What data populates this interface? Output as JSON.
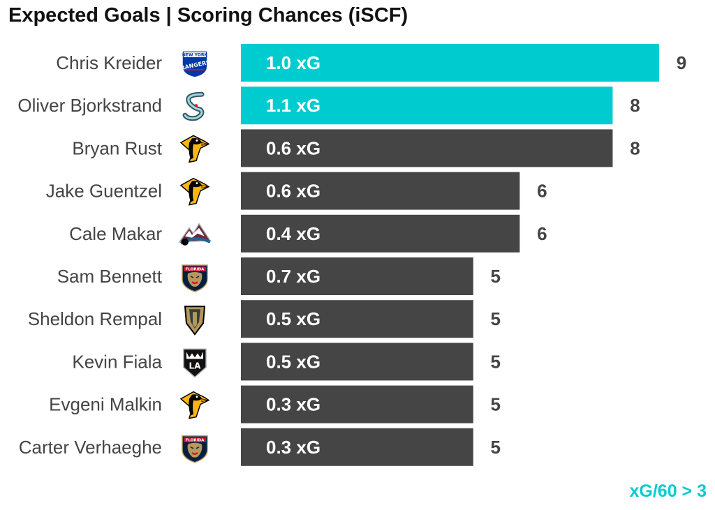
{
  "colors": {
    "highlight": "#00ccd0",
    "default_bar": "#454545",
    "label_text": "#444444",
    "title_text": "#111111"
  },
  "chart_data": {
    "type": "bar",
    "orientation": "horizontal",
    "title": "Expected Goals | Scoring Chances (iSCF)",
    "note": "xG/60 > 3",
    "xlim": [
      0,
      9
    ],
    "grid": false,
    "categories": [
      "Chris Kreider",
      "Oliver Bjorkstrand",
      "Bryan Rust",
      "Jake Guentzel",
      "Cale Makar",
      "Sam Bennett",
      "Sheldon Rempal",
      "Kevin Fiala",
      "Evgeni Malkin",
      "Carter Verhaeghe"
    ],
    "values": [
      9,
      8,
      8,
      6,
      6,
      5,
      5,
      5,
      5,
      5
    ],
    "xg_labels": [
      "1.0 xG",
      "1.1 xG",
      "0.6 xG",
      "0.6 xG",
      "0.4 xG",
      "0.7 xG",
      "0.5 xG",
      "0.5 xG",
      "0.3 xG",
      "0.3 xG"
    ],
    "highlighted": [
      true,
      true,
      false,
      false,
      false,
      false,
      false,
      false,
      false,
      false
    ],
    "team_logos": [
      "rangers-logo-icon",
      "kraken-logo-icon",
      "penguins-logo-icon",
      "penguins-logo-icon",
      "avalanche-logo-icon",
      "panthers-logo-icon",
      "golden-knights-logo-icon",
      "kings-logo-icon",
      "penguins-logo-icon",
      "panthers-logo-icon"
    ]
  }
}
